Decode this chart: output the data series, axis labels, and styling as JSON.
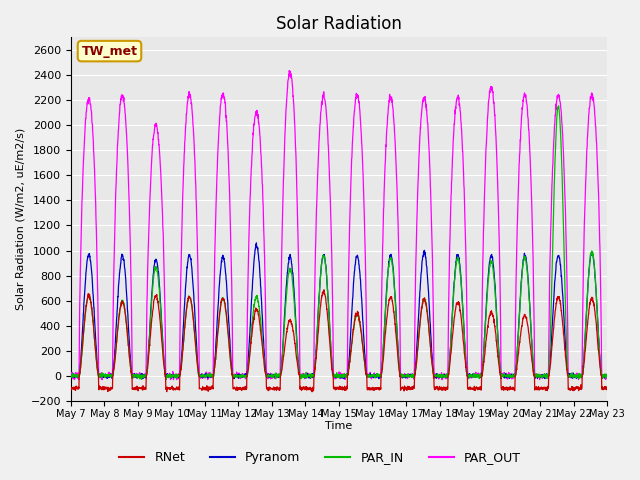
{
  "title": "Solar Radiation",
  "xlabel": "Time",
  "ylabel": "Solar Radiation (W/m2, uE/m2/s)",
  "ylim": [
    -200,
    2700
  ],
  "yticks": [
    -200,
    0,
    200,
    400,
    600,
    800,
    1000,
    1200,
    1400,
    1600,
    1800,
    2000,
    2200,
    2400,
    2600
  ],
  "fig_bg_color": "#f0f0f0",
  "plot_bg_color": "#e8e8e8",
  "grid_color": "#ffffff",
  "colors": {
    "RNet": "#cc0000",
    "Pyranom": "#0000cc",
    "PAR_IN": "#00bb00",
    "PAR_OUT": "#ff00ff"
  },
  "station_label": "TW_met",
  "station_label_color": "#880000",
  "station_label_bg": "#ffffcc",
  "station_label_edge": "#cc9900",
  "n_days": 16,
  "start_day": 7,
  "peak_PAR_OUT": [
    2220,
    2240,
    2000,
    2240,
    2250,
    2100,
    2420,
    2230,
    2240,
    2220,
    2220,
    2220,
    2300,
    2240,
    2240,
    2240
  ],
  "peak_Pyranom": [
    970,
    960,
    930,
    960,
    950,
    1040,
    950,
    965,
    955,
    965,
    990,
    965,
    960,
    965,
    965,
    985
  ],
  "peak_PAR_IN": [
    640,
    600,
    870,
    630,
    620,
    630,
    850,
    960,
    490,
    940,
    610,
    940,
    910,
    940,
    2150,
    990
  ],
  "peak_RNet": [
    640,
    590,
    640,
    630,
    620,
    530,
    440,
    670,
    500,
    630,
    610,
    590,
    510,
    480,
    630,
    620
  ],
  "night_RNet": -100
}
